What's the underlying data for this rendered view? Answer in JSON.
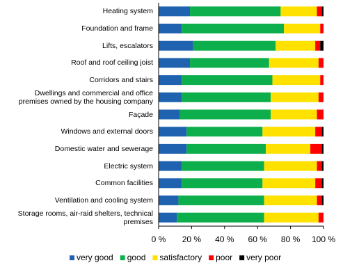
{
  "chart_data": {
    "type": "stacked-barh",
    "categories": [
      "Heating system",
      "Foundation and frame",
      "Lifts, escalators",
      "Roof and roof ceiling joist",
      "Corridors and stairs",
      "Dwellings and commercial and office premises owned by the housing company",
      "Façade",
      "Windows and external doors",
      "Domestic water and sewerage",
      "Electric system",
      "Common facilities",
      "Ventilation and cooling system",
      "Storage rooms, air-raid shelters, technical premises"
    ],
    "series": [
      {
        "name": "very good",
        "color": "#1f63b0",
        "values": [
          19,
          14,
          21,
          19,
          14,
          14,
          13,
          17,
          17,
          14,
          14,
          12,
          11
        ]
      },
      {
        "name": "good",
        "color": "#0daf4c",
        "values": [
          55,
          62,
          50,
          48,
          55,
          54,
          55,
          46,
          48,
          50,
          49,
          52,
          53
        ]
      },
      {
        "name": "satisfactory",
        "color": "#ffe100",
        "values": [
          22,
          22,
          24,
          30,
          29,
          29,
          28,
          32,
          27,
          32,
          32,
          32,
          33
        ]
      },
      {
        "name": "poor",
        "color": "#ff0000",
        "values": [
          3,
          2,
          3,
          3,
          2,
          3,
          4,
          4,
          7,
          3,
          4,
          3,
          3
        ]
      },
      {
        "name": "very poor",
        "color": "#000000",
        "values": [
          1,
          0,
          2,
          0,
          0,
          0,
          0,
          1,
          1,
          1,
          1,
          1,
          0
        ]
      }
    ],
    "xlim": [
      0,
      100
    ],
    "xticks": [
      {
        "value": 0,
        "label": "0 %"
      },
      {
        "value": 20,
        "label": "20 %"
      },
      {
        "value": 40,
        "label": "40 %"
      },
      {
        "value": 60,
        "label": "60 %"
      },
      {
        "value": 80,
        "label": "80 %"
      },
      {
        "value": 100,
        "label": "100 %"
      }
    ],
    "legend": "bottom"
  }
}
